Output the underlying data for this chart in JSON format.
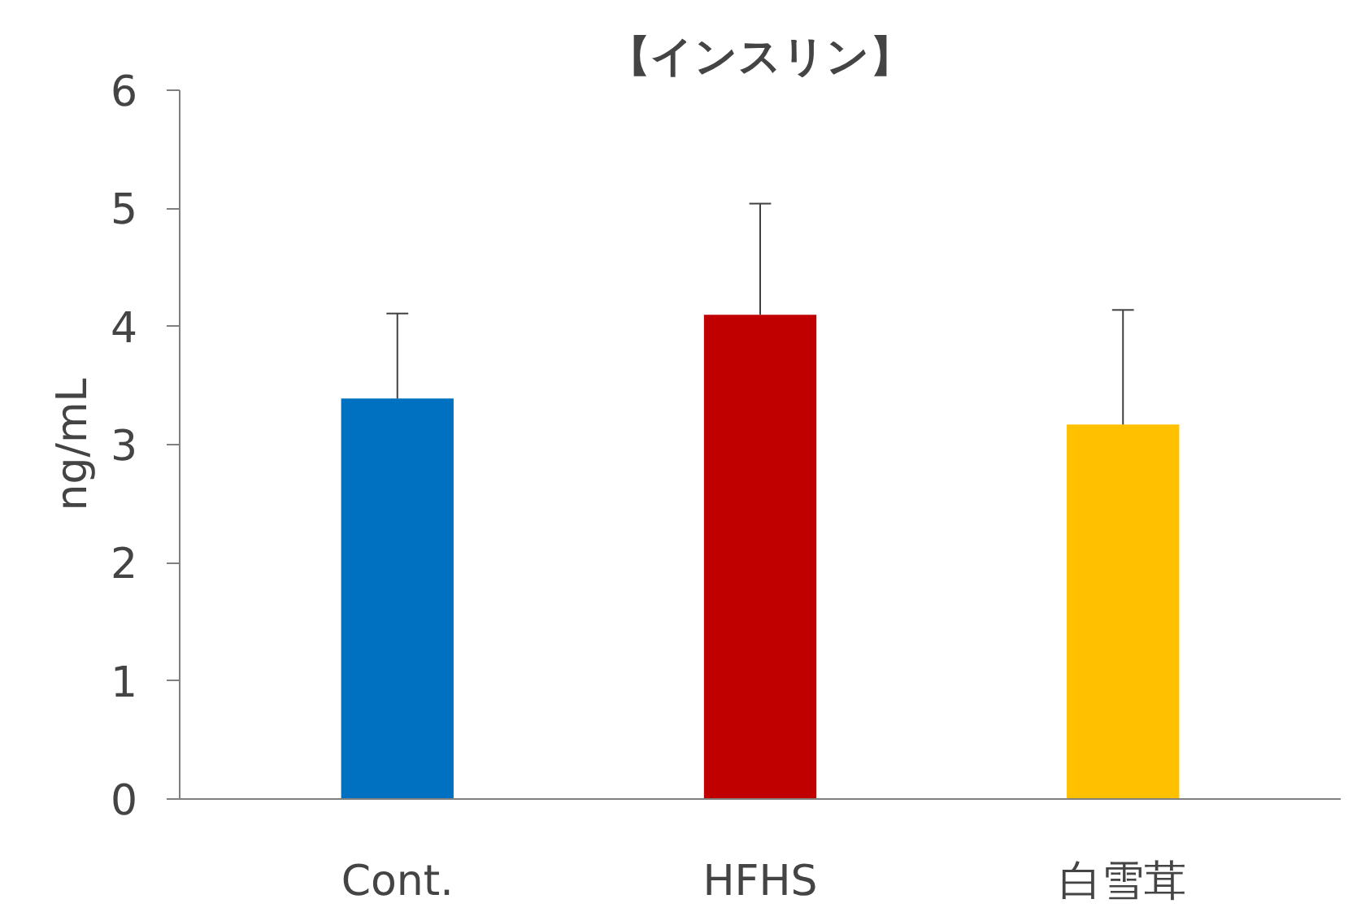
{
  "chart_data": {
    "type": "bar",
    "title": "【インスリン】",
    "ylabel": "ng/mL",
    "categories": [
      "Cont.",
      "HFHS",
      "白雪茸"
    ],
    "values": [
      3.39,
      4.1,
      3.17
    ],
    "colors": [
      "#0070c0",
      "#c00000",
      "#ffc000"
    ],
    "errors": [
      [
        3.39,
        4.11
      ],
      [
        4.1,
        5.04
      ],
      [
        3.17,
        4.14
      ]
    ],
    "ylim": [
      0,
      6
    ],
    "yticks": [
      0,
      1,
      2,
      3,
      4,
      5,
      6
    ],
    "grid": false
  }
}
